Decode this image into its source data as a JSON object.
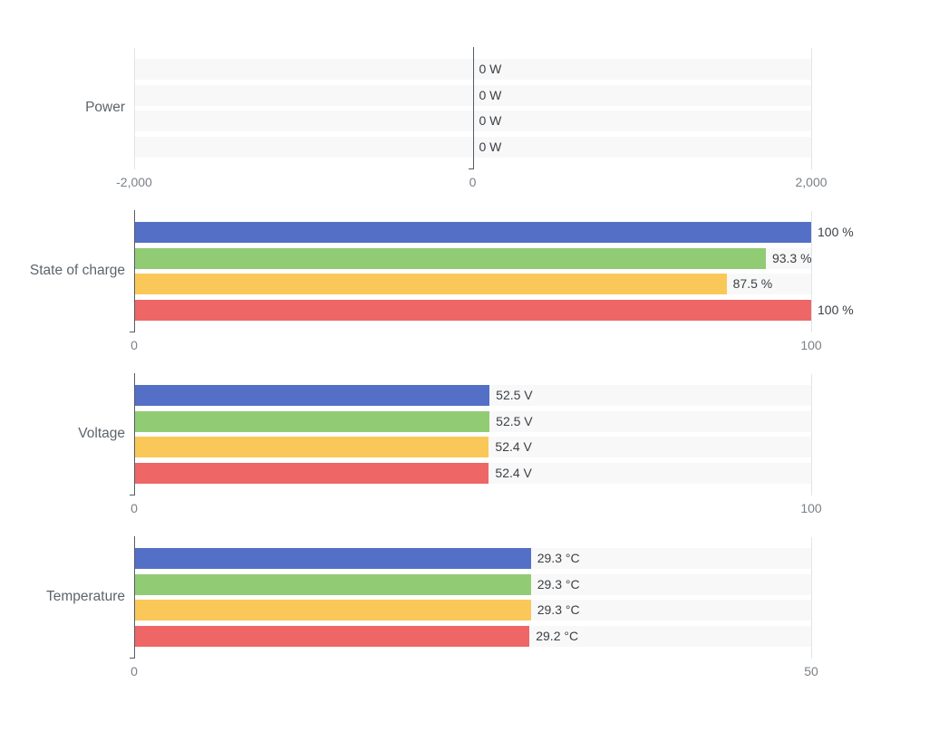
{
  "palette": {
    "bar_colors": [
      "#5470c6",
      "#91cc75",
      "#fac858",
      "#ee6666"
    ],
    "track_color": "#f8f8f8",
    "gridline_color": "#dfe5ec",
    "axis_line_color": "#535c66",
    "title_color": "#5d646b",
    "tick_label_color": "#7a8188",
    "value_label_color": "#3b4045",
    "background": "#ffffff"
  },
  "chart_data": [
    {
      "type": "bar",
      "orientation": "horizontal",
      "title": "Power",
      "unit": "W",
      "values": [
        0,
        0,
        0,
        0
      ],
      "value_labels": [
        "0 W",
        "0 W",
        "0 W",
        "0 W"
      ],
      "xlim": [
        -2000,
        2000
      ],
      "axis_at": 0,
      "grid_values": [
        -2000,
        2000
      ],
      "xticks": [
        {
          "value": -2000,
          "label": "-2,000"
        },
        {
          "value": 0,
          "label": "0"
        },
        {
          "value": 2000,
          "label": "2,000"
        }
      ],
      "legend": "none",
      "grid": "vertical-lines-at-ticks"
    },
    {
      "type": "bar",
      "orientation": "horizontal",
      "title": "State of charge",
      "unit": "%",
      "values": [
        100,
        93.3,
        87.5,
        100
      ],
      "value_labels": [
        "100 %",
        "93.3 %",
        "87.5 %",
        "100 %"
      ],
      "xlim": [
        0,
        100
      ],
      "axis_at": 0,
      "grid_values": [
        100
      ],
      "xticks": [
        {
          "value": 0,
          "label": "0"
        },
        {
          "value": 100,
          "label": "100"
        }
      ],
      "legend": "none",
      "grid": "vertical-lines-at-ticks"
    },
    {
      "type": "bar",
      "orientation": "horizontal",
      "title": "Voltage",
      "unit": "V",
      "values": [
        52.5,
        52.5,
        52.4,
        52.4
      ],
      "value_labels": [
        "52.5 V",
        "52.5 V",
        "52.4 V",
        "52.4 V"
      ],
      "xlim": [
        0,
        100
      ],
      "axis_at": 0,
      "grid_values": [
        100
      ],
      "xticks": [
        {
          "value": 0,
          "label": "0"
        },
        {
          "value": 100,
          "label": "100"
        }
      ],
      "legend": "none",
      "grid": "vertical-lines-at-ticks"
    },
    {
      "type": "bar",
      "orientation": "horizontal",
      "title": "Temperature",
      "unit": "°C",
      "values": [
        29.3,
        29.3,
        29.3,
        29.2
      ],
      "value_labels": [
        "29.3 °C",
        "29.3 °C",
        "29.3 °C",
        "29.2 °C"
      ],
      "xlim": [
        0,
        50
      ],
      "axis_at": 0,
      "grid_values": [
        50
      ],
      "xticks": [
        {
          "value": 0,
          "label": "0"
        },
        {
          "value": 50,
          "label": "50"
        }
      ],
      "legend": "none",
      "grid": "vertical-lines-at-ticks"
    }
  ]
}
